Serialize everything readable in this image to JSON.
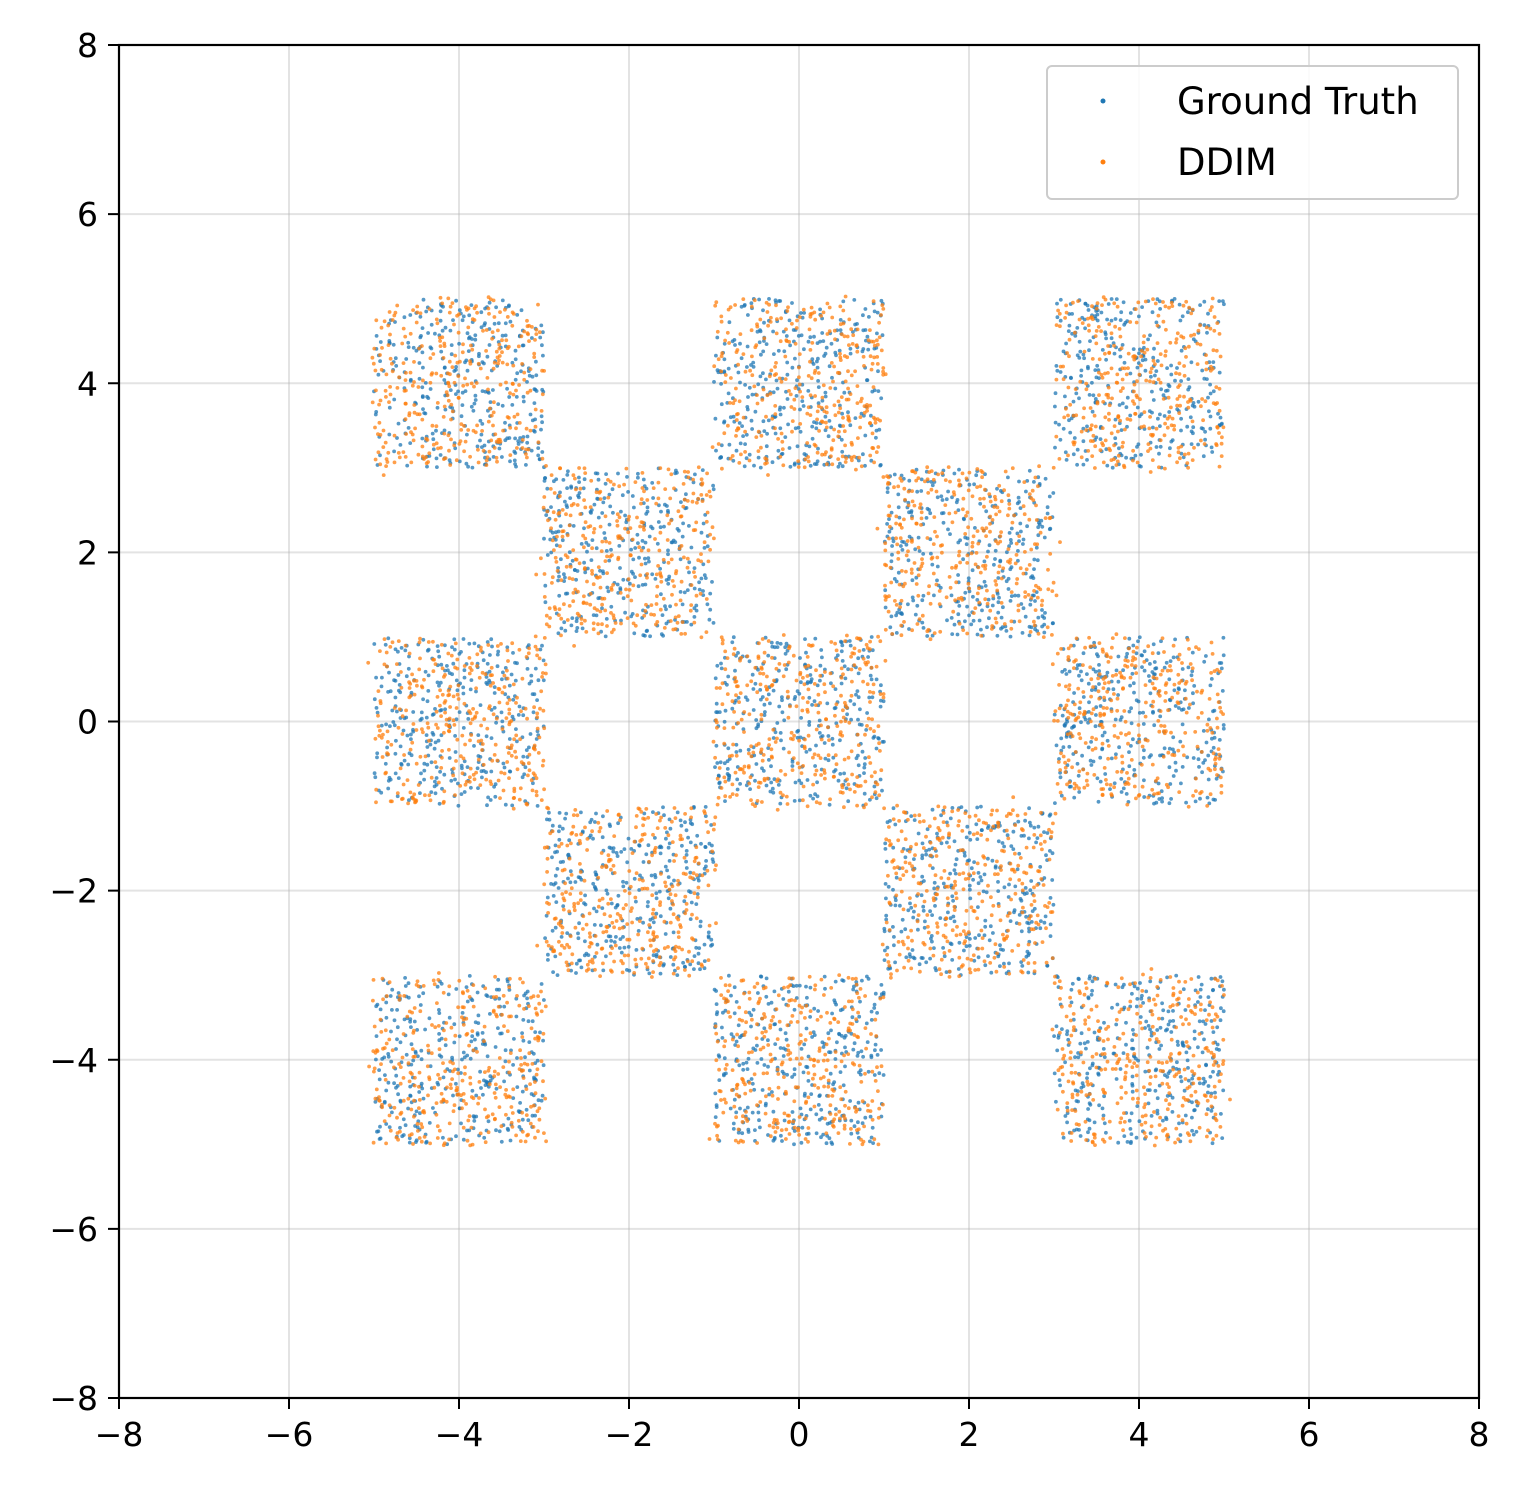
{
  "chart_data": {
    "type": "scatter",
    "title": "",
    "xlabel": "",
    "ylabel": "",
    "xlim": [
      -8,
      8
    ],
    "ylim": [
      -8,
      8
    ],
    "xticks": [
      -8,
      -6,
      -4,
      -2,
      0,
      2,
      4,
      6,
      8
    ],
    "yticks": [
      -8,
      -6,
      -4,
      -2,
      0,
      2,
      4,
      6,
      8
    ],
    "xtick_labels": [
      "−8",
      "−6",
      "−4",
      "−2",
      "0",
      "2",
      "4",
      "6",
      "8"
    ],
    "ytick_labels": [
      "−8",
      "−6",
      "−4",
      "−2",
      "0",
      "2",
      "4",
      "6",
      "8"
    ],
    "grid": true,
    "legend_position": "top-right",
    "series": [
      {
        "name": "Ground Truth",
        "color": "#1f77b4",
        "distribution": "uniform within checkerboard squares",
        "squares_x_ranges": [
          [
            -5,
            -3
          ],
          [
            -1,
            1
          ],
          [
            3,
            5
          ],
          [
            -3,
            -1
          ],
          [
            1,
            3
          ],
          [
            -5,
            -3
          ],
          [
            -1,
            1
          ],
          [
            3,
            5
          ],
          [
            -3,
            -1
          ],
          [
            1,
            3
          ],
          [
            -5,
            -3
          ],
          [
            -1,
            1
          ],
          [
            3,
            5
          ]
        ],
        "squares_y_ranges": [
          [
            3,
            5
          ],
          [
            3,
            5
          ],
          [
            3,
            5
          ],
          [
            1,
            3
          ],
          [
            1,
            3
          ],
          [
            -1,
            1
          ],
          [
            -1,
            1
          ],
          [
            -1,
            1
          ],
          [
            -3,
            -1
          ],
          [
            -3,
            -1
          ],
          [
            -5,
            -3
          ],
          [
            -5,
            -3
          ],
          [
            -5,
            -3
          ]
        ],
        "points_per_square": 320
      },
      {
        "name": "DDIM",
        "color": "#ff7f0e",
        "distribution": "approximately uniform within checkerboard squares with small spread beyond edges",
        "squares_x_ranges": [
          [
            -5,
            -3
          ],
          [
            -1,
            1
          ],
          [
            3,
            5
          ],
          [
            -3,
            -1
          ],
          [
            1,
            3
          ],
          [
            -5,
            -3
          ],
          [
            -1,
            1
          ],
          [
            3,
            5
          ],
          [
            -3,
            -1
          ],
          [
            1,
            3
          ],
          [
            -5,
            -3
          ],
          [
            -1,
            1
          ],
          [
            3,
            5
          ]
        ],
        "squares_y_ranges": [
          [
            3,
            5
          ],
          [
            3,
            5
          ],
          [
            3,
            5
          ],
          [
            1,
            3
          ],
          [
            1,
            3
          ],
          [
            -1,
            1
          ],
          [
            -1,
            1
          ],
          [
            -1,
            1
          ],
          [
            -3,
            -1
          ],
          [
            -3,
            -1
          ],
          [
            -5,
            -3
          ],
          [
            -5,
            -3
          ],
          [
            -5,
            -3
          ]
        ],
        "points_per_square": 320
      }
    ]
  }
}
